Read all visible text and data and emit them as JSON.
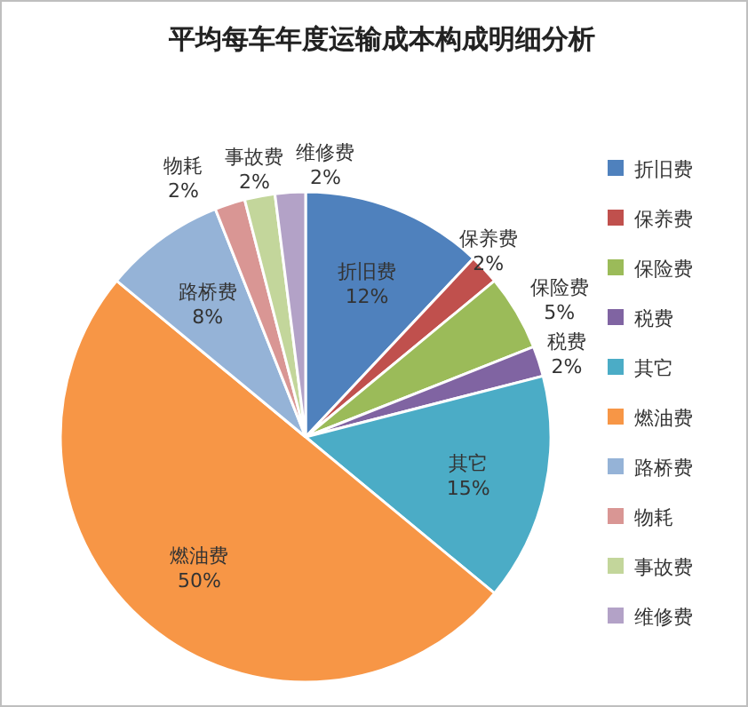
{
  "chart_data": {
    "type": "pie",
    "title": "平均每车年度运输成本构成明细分析",
    "categories": [
      "折旧费",
      "保养费",
      "保险费",
      "税费",
      "其它",
      "燃油费",
      "路桥费",
      "物耗",
      "事故费",
      "维修费"
    ],
    "values": [
      12,
      2,
      5,
      2,
      15,
      50,
      8,
      2,
      2,
      2
    ],
    "colors": [
      "#4f81bd",
      "#c0504d",
      "#9bbb59",
      "#8064a2",
      "#4bacc6",
      "#f79646",
      "#95b3d7",
      "#d99694",
      "#c3d69b",
      "#b3a2c7"
    ],
    "value_labels": [
      "12%",
      "2%",
      "5%",
      "2%",
      "15%",
      "50%",
      "8%",
      "2%",
      "2%",
      "2%"
    ],
    "legend": "right"
  }
}
